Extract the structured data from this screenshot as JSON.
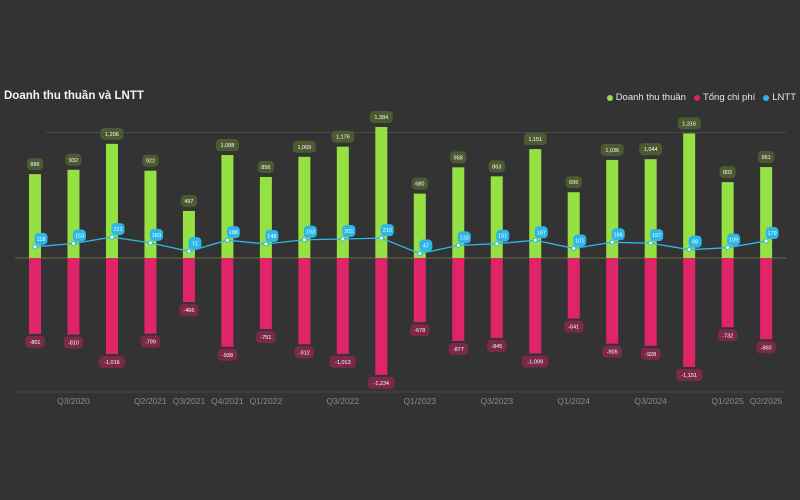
{
  "chart_data": {
    "type": "bar",
    "title": "Doanh thu thuần và LNTT",
    "xlabel": "",
    "ylabel": "",
    "ylim": [
      -1420,
      1400
    ],
    "grid": true,
    "legend_position": "top-right",
    "tick_labels": [
      {
        "index": 1,
        "label": "Q3/2020"
      },
      {
        "index": 3,
        "label": "Q2/2021"
      },
      {
        "index": 4,
        "label": "Q3/2021"
      },
      {
        "index": 5,
        "label": "Q4/2021"
      },
      {
        "index": 6,
        "label": "Q1/2022"
      },
      {
        "index": 8,
        "label": "Q3/2022"
      },
      {
        "index": 10,
        "label": "Q1/2023"
      },
      {
        "index": 12,
        "label": "Q3/2023"
      },
      {
        "index": 14,
        "label": "Q1/2024"
      },
      {
        "index": 16,
        "label": "Q3/2024"
      },
      {
        "index": 18,
        "label": "Q1/2025"
      },
      {
        "index": 19,
        "label": "Q2/2025"
      }
    ],
    "series": [
      {
        "name": "Doanh thu thuần",
        "type": "bar",
        "color": "#95e043",
        "label_bg": "#4c5a32",
        "values": [
          886,
          932,
          1206,
          922,
          497,
          1088,
          856,
          1069,
          1176,
          1384,
          680,
          958,
          863,
          1151,
          695,
          1036,
          1044,
          1316,
          802,
          961
        ]
      },
      {
        "name": "Tổng chi phí",
        "type": "bar",
        "color": "#e0246a",
        "label_bg": "#7a2a48",
        "values": [
          -801,
          -810,
          -1016,
          -799,
          -466,
          -938,
          -751,
          -912,
          -1013,
          -1234,
          -678,
          -877,
          -845,
          -1009,
          -641,
          -905,
          -928,
          -1151,
          -732,
          -860
        ]
      },
      {
        "name": "LNTT",
        "type": "line",
        "color": "#2db6e8",
        "label_bg": "#2db6e8",
        "values": [
          118,
          153,
          221,
          160,
          71,
          188,
          148,
          193,
          201,
          210,
          47,
          133,
          151,
          187,
          101,
          166,
          157,
          88,
          109,
          179
        ]
      }
    ]
  }
}
